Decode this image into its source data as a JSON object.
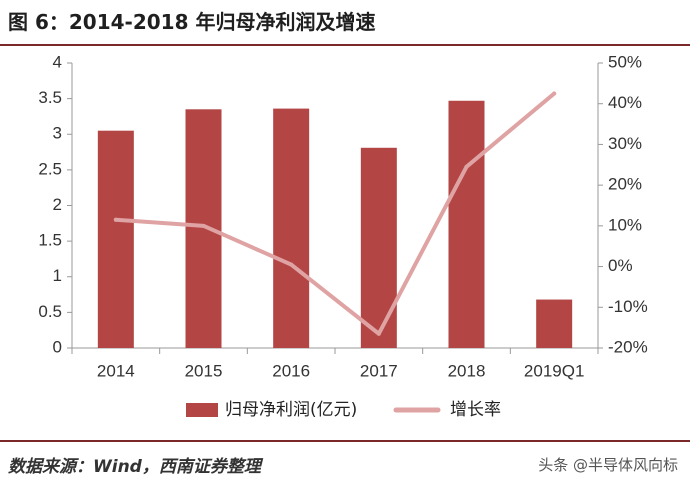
{
  "header": {
    "title": "图 6：2014-2018 年归母净利润及增速"
  },
  "footer": {
    "source": "数据来源：Wind，西南证券整理",
    "watermark": "头条 @半导体风向标"
  },
  "colors": {
    "bar": "#b34545",
    "line": "#dfa3a3",
    "axis": "#999999",
    "rule": "#7a2828"
  },
  "chart_data": {
    "type": "bar",
    "categories": [
      "2014",
      "2015",
      "2016",
      "2017",
      "2018",
      "2019Q1"
    ],
    "series": [
      {
        "name": "归母净利润(亿元)",
        "type": "bar",
        "axis": "left",
        "values": [
          3.05,
          3.35,
          3.36,
          2.81,
          3.47,
          0.68
        ]
      },
      {
        "name": "增长率",
        "type": "line",
        "axis": "right",
        "values": [
          11.5,
          10.0,
          0.5,
          -16.5,
          24.5,
          42.5
        ]
      }
    ],
    "y_left": {
      "ylim": [
        0,
        4
      ],
      "ticks": [
        "0",
        "0.5",
        "1",
        "1.5",
        "2",
        "2.5",
        "3",
        "3.5",
        "4"
      ]
    },
    "y_right": {
      "ylim": [
        -20,
        50
      ],
      "ticks": [
        "-20%",
        "-10%",
        "0%",
        "10%",
        "20%",
        "30%",
        "40%",
        "50%"
      ]
    },
    "grid": false,
    "legend_position": "bottom"
  }
}
